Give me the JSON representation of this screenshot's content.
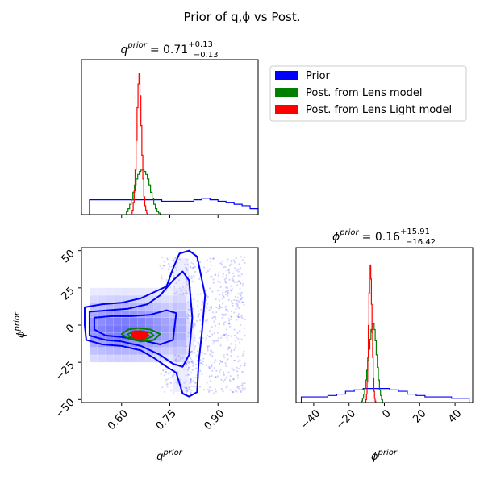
{
  "title": "Prior of q,ϕ vs Post.",
  "colors": {
    "prior": "#0000ff",
    "lens": "#008000",
    "light": "#ff0000",
    "axis": "#000000"
  },
  "legend": {
    "placement": "top-right",
    "items": [
      {
        "label": "Prior",
        "color": "#0000ff"
      },
      {
        "label": "Post. from Lens model",
        "color": "#008000"
      },
      {
        "label": "Post. from Lens Light model",
        "color": "#ff0000"
      }
    ]
  },
  "chart_data": [
    {
      "type": "histogram",
      "panel": "q-marginal",
      "title_var": "q",
      "title_sup": "prior",
      "title_value": "= 0.71",
      "title_plus": "+0.13",
      "title_minus": "−0.13",
      "xlim": [
        0.475,
        1.025
      ],
      "bin_edges_start": 0.5,
      "bin_width": 0.025,
      "series": [
        {
          "name": "Prior",
          "color": "#0000ff",
          "values": [
            0.1,
            0.1,
            0.1,
            0.1,
            0.1,
            0.1,
            0.1,
            0.1,
            0.1,
            0.09,
            0.09,
            0.09,
            0.09,
            0.1,
            0.11,
            0.1,
            0.09,
            0.08,
            0.07,
            0.06,
            0.04
          ]
        },
        {
          "name": "Post. from Lens model",
          "color": "#008000",
          "step_start": 0.615,
          "step_width": 0.005,
          "values": [
            0.02,
            0.04,
            0.07,
            0.1,
            0.15,
            0.2,
            0.24,
            0.27,
            0.29,
            0.3,
            0.3,
            0.29,
            0.27,
            0.24,
            0.2,
            0.15,
            0.11,
            0.07,
            0.04,
            0.02,
            0.01
          ]
        },
        {
          "name": "Post. from Lens Light model",
          "color": "#ff0000",
          "step_start": 0.63,
          "step_width": 0.003,
          "values": [
            0.01,
            0.03,
            0.08,
            0.16,
            0.3,
            0.5,
            0.72,
            0.88,
            0.95,
            0.8,
            0.6,
            0.4,
            0.24,
            0.12,
            0.06,
            0.03,
            0.01
          ]
        }
      ]
    },
    {
      "type": "scatter",
      "panel": "q-phi-2d",
      "xlabel": "q",
      "xlabel_sup": "prior",
      "ylabel": "ϕ",
      "ylabel_sup": "prior",
      "xlim": [
        0.475,
        1.025
      ],
      "ylim": [
        -52,
        52
      ],
      "xticks": [
        "0.60",
        "0.75",
        "0.90"
      ],
      "xtick_values": [
        0.6,
        0.75,
        0.9
      ],
      "yticks": [
        "50",
        "25",
        "0",
        "−25",
        "−50"
      ],
      "ytick_values": [
        50,
        25,
        0,
        -25,
        -50
      ],
      "contours": [
        {
          "name": "Prior",
          "color": "#0000ff",
          "level": "outer",
          "points": [
            [
              0.485,
              12
            ],
            [
              0.54,
              14
            ],
            [
              0.6,
              15
            ],
            [
              0.66,
              18
            ],
            [
              0.7,
              22
            ],
            [
              0.74,
              26
            ],
            [
              0.76,
              38
            ],
            [
              0.78,
              48
            ],
            [
              0.81,
              50
            ],
            [
              0.835,
              46
            ],
            [
              0.86,
              20
            ],
            [
              0.85,
              -5
            ],
            [
              0.84,
              -25
            ],
            [
              0.835,
              -45
            ],
            [
              0.81,
              -48
            ],
            [
              0.79,
              -46
            ],
            [
              0.77,
              -32
            ],
            [
              0.74,
              -28
            ],
            [
              0.7,
              -22
            ],
            [
              0.66,
              -17
            ],
            [
              0.6,
              -14
            ],
            [
              0.54,
              -13
            ],
            [
              0.49,
              -10
            ],
            [
              0.485,
              0
            ]
          ]
        },
        {
          "name": "Prior",
          "color": "#0000ff",
          "level": "mid",
          "points": [
            [
              0.5,
              9
            ],
            [
              0.56,
              10
            ],
            [
              0.62,
              11
            ],
            [
              0.68,
              14
            ],
            [
              0.72,
              20
            ],
            [
              0.76,
              30
            ],
            [
              0.79,
              36
            ],
            [
              0.81,
              30
            ],
            [
              0.82,
              5
            ],
            [
              0.81,
              -20
            ],
            [
              0.79,
              -28
            ],
            [
              0.76,
              -26
            ],
            [
              0.72,
              -20
            ],
            [
              0.66,
              -14
            ],
            [
              0.6,
              -11
            ],
            [
              0.55,
              -10
            ],
            [
              0.5,
              -7
            ]
          ]
        },
        {
          "name": "Prior",
          "color": "#0000ff",
          "level": "inner",
          "points": [
            [
              0.515,
              5
            ],
            [
              0.57,
              6
            ],
            [
              0.63,
              6
            ],
            [
              0.69,
              7
            ],
            [
              0.74,
              10
            ],
            [
              0.77,
              8
            ],
            [
              0.76,
              -10
            ],
            [
              0.72,
              -13
            ],
            [
              0.66,
              -10
            ],
            [
              0.6,
              -8
            ],
            [
              0.55,
              -7
            ],
            [
              0.515,
              -3
            ]
          ]
        },
        {
          "name": "Post. from Lens model",
          "color": "#008000",
          "level": "outer",
          "points": [
            [
              0.62,
              -3
            ],
            [
              0.65,
              -2
            ],
            [
              0.69,
              -3
            ],
            [
              0.72,
              -6
            ],
            [
              0.7,
              -10
            ],
            [
              0.66,
              -11
            ],
            [
              0.62,
              -9
            ],
            [
              0.6,
              -6
            ]
          ]
        },
        {
          "name": "Post. from Lens model",
          "color": "#008000",
          "level": "inner",
          "points": [
            [
              0.635,
              -4.5
            ],
            [
              0.66,
              -4
            ],
            [
              0.69,
              -5
            ],
            [
              0.7,
              -7
            ],
            [
              0.68,
              -9
            ],
            [
              0.65,
              -9.5
            ],
            [
              0.625,
              -8
            ],
            [
              0.62,
              -6
            ]
          ]
        },
        {
          "name": "Post. from Lens Light model",
          "color": "#ff0000",
          "level": "fill",
          "points": [
            [
              0.64,
              -4
            ],
            [
              0.66,
              -4
            ],
            [
              0.68,
              -5.5
            ],
            [
              0.685,
              -7
            ],
            [
              0.67,
              -9
            ],
            [
              0.65,
              -9.5
            ],
            [
              0.635,
              -8
            ],
            [
              0.63,
              -6
            ]
          ]
        }
      ]
    },
    {
      "type": "histogram",
      "panel": "phi-marginal",
      "title_var": "ϕ",
      "title_sup": "prior",
      "title_value": "= 0.16",
      "title_plus": "+15.91",
      "title_minus": "−16.42",
      "xlabel": "ϕ",
      "xlabel_sup": "prior",
      "xlim": [
        -50,
        50
      ],
      "xticks": [
        "−40",
        "−20",
        "0",
        "20",
        "40"
      ],
      "xtick_values": [
        -40,
        -20,
        0,
        20,
        40
      ],
      "bin_edges_start": -47,
      "bin_width": 5,
      "series": [
        {
          "name": "Prior",
          "color": "#0000ff",
          "values": [
            0.04,
            0.04,
            0.04,
            0.05,
            0.06,
            0.08,
            0.09,
            0.1,
            0.1,
            0.1,
            0.09,
            0.08,
            0.06,
            0.05,
            0.04,
            0.04,
            0.04,
            0.03,
            0.03
          ]
        },
        {
          "name": "Post. from Lens model",
          "color": "#008000",
          "step_start": -13,
          "step_width": 0.6,
          "values": [
            0.01,
            0.03,
            0.06,
            0.1,
            0.16,
            0.23,
            0.3,
            0.38,
            0.45,
            0.52,
            0.56,
            0.56,
            0.52,
            0.44,
            0.34,
            0.25,
            0.16,
            0.09,
            0.05,
            0.02
          ]
        },
        {
          "name": "Post. from Lens Light model",
          "color": "#ff0000",
          "step_start": -10.5,
          "step_width": 0.35,
          "values": [
            0.02,
            0.06,
            0.15,
            0.32,
            0.55,
            0.78,
            0.95,
            0.98,
            0.88,
            0.7,
            0.5,
            0.32,
            0.17,
            0.08,
            0.03,
            0.01
          ]
        }
      ]
    }
  ]
}
